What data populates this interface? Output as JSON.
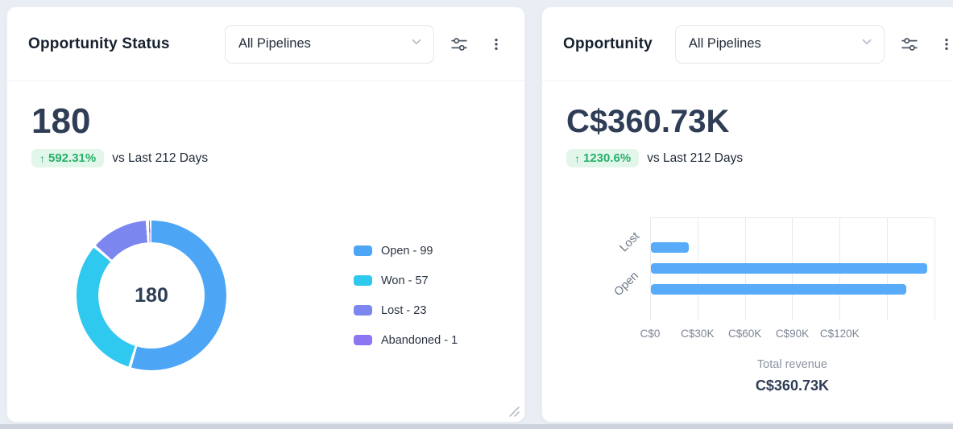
{
  "icons": {
    "up_arrow": "↑"
  },
  "cards": {
    "left": {
      "title": "Opportunity Status",
      "pipeline_select_value": "All Pipelines",
      "metric_value": "180",
      "metric_change": "592.31%",
      "compare_label": "vs Last 212 Days"
    },
    "right": {
      "title": "Opportunity",
      "pipeline_select_value": "All Pipelines",
      "metric_value": "C$360.73K",
      "metric_change": "1230.6%",
      "compare_label": "vs Last 212 Days"
    }
  },
  "colors": {
    "badge_bg": "#e3f6eb",
    "badge_text": "#26b06a",
    "page_bg": "#e9edf4"
  },
  "chart_data": [
    {
      "type": "pie",
      "variant": "donut",
      "title": "Opportunity Status",
      "center_label": "180",
      "total": 180,
      "segments": [
        {
          "label": "Open",
          "value": 99,
          "color": "#4da6f5"
        },
        {
          "label": "Won",
          "value": 57,
          "color": "#2fc8ef"
        },
        {
          "label": "Lost",
          "value": 23,
          "color": "#7b87ee"
        },
        {
          "label": "Abandoned",
          "value": 1,
          "color": "#8e75f2"
        }
      ],
      "legend_position": "right",
      "legend_labels": [
        "Open - 99",
        "Won - 57",
        "Lost - 23",
        "Abandoned - 1"
      ]
    },
    {
      "type": "bar",
      "orientation": "horizontal",
      "title": "Opportunity",
      "bars": [
        {
          "label": "Lost",
          "value": 24000
        },
        {
          "label": "",
          "value": 175000
        },
        {
          "label": "Open",
          "value": 161730
        }
      ],
      "visible_y_labels": [
        "Lost",
        "Open"
      ],
      "x_ticks": [
        "C$0",
        "C$30K",
        "C$60K",
        "C$90K",
        "C$120K"
      ],
      "x_step": 30000,
      "x_max": 180000,
      "xlabel": "Total revenue",
      "xlabel_value": "C$360.73K",
      "bar_color": "#57abf8",
      "grid": true
    }
  ]
}
